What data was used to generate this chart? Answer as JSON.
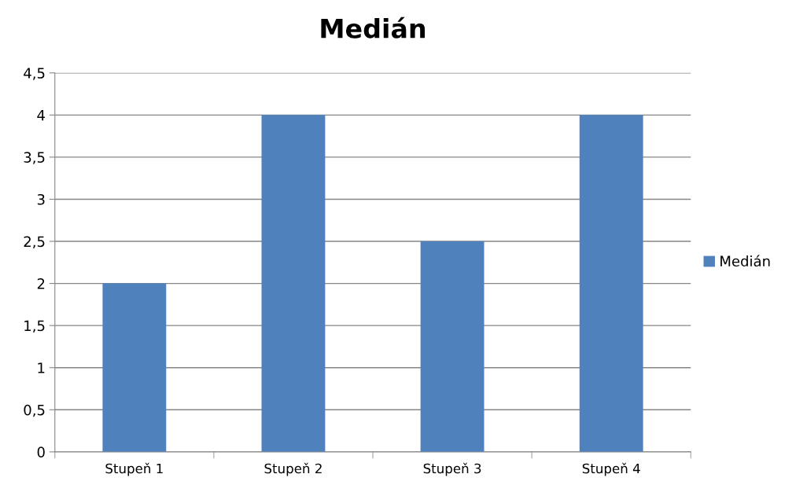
{
  "chart_data": {
    "type": "bar",
    "title": "Medián",
    "categories": [
      "Stupeň 1",
      "Stupeň 2",
      "Stupeň 3",
      "Stupeň 4"
    ],
    "series": [
      {
        "name": "Medián",
        "color": "#4f81bd",
        "values": [
          2,
          4,
          2.5,
          4
        ]
      }
    ],
    "ylim": [
      0,
      4.5
    ],
    "yticks": [
      0,
      {
        "value": 0.5,
        "label": "0,5"
      },
      1,
      {
        "value": 1.5,
        "label": "1,5"
      },
      2,
      {
        "value": 2.5,
        "label": "2,5"
      },
      3,
      {
        "value": 3.5,
        "label": "3,5"
      },
      4,
      {
        "value": 4.5,
        "label": "4,5"
      }
    ],
    "grid": "y",
    "legend": "right"
  }
}
